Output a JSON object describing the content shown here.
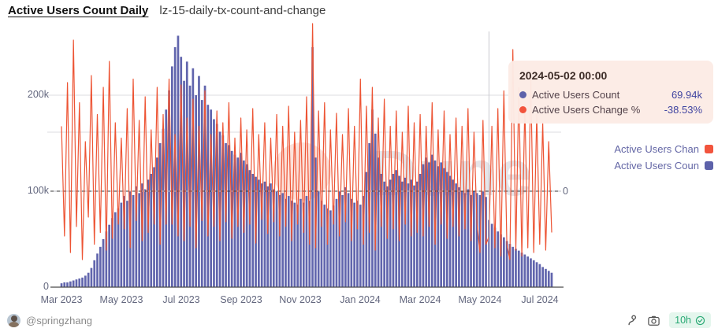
{
  "header": {
    "title": "Active Users Count Daily",
    "subtitle": "lz-15-daily-tx-count-and-change"
  },
  "tooltip": {
    "date": "2024-05-02 00:00",
    "rows": [
      {
        "label": "Active Users Count",
        "value": "69.94k",
        "color": "#5d62aa"
      },
      {
        "label": "Active Users Change %",
        "value": "-38.53%",
        "color": "#f2543d"
      }
    ]
  },
  "legend": [
    {
      "label": "Active Users Chan",
      "color": "#f2543d"
    },
    {
      "label": "Active Users Coun",
      "color": "#5d62aa"
    }
  ],
  "watermark": {
    "text": "Dune"
  },
  "footer": {
    "handle": "@springzhang",
    "refresh": "10h"
  },
  "colors": {
    "bar": "#6165ad",
    "line": "#ed5434",
    "grid": "#dcdce2",
    "zero_line": "#3a3a3a",
    "axis_text": "#63677e",
    "tooltip_bg": "#fcebe5",
    "badge_green": "#27a873"
  },
  "chart_data": {
    "type": "combo",
    "x_start": "2023-03-01",
    "x_step_days": 3,
    "x_ticks": [
      "Mar 2023",
      "May 2023",
      "Jul 2023",
      "Sep 2023",
      "Nov 2023",
      "Jan 2024",
      "Mar 2024",
      "May 2024",
      "Jul 2024"
    ],
    "left_axis": {
      "title": "Active Users Count",
      "tick_labels": [
        "0",
        "100k",
        "200k"
      ],
      "tick_values_k": [
        0,
        100,
        200
      ],
      "max_k": 270
    },
    "right_axis": {
      "title": "Active Users Change %",
      "tick_labels": [
        "0"
      ],
      "tick_values_pct": [
        0
      ]
    },
    "highlight": {
      "date": "2024-05-02 00:00",
      "count": "69.94k",
      "change_pct": -38.53
    },
    "series": [
      {
        "name": "Active Users Count",
        "type": "bar",
        "axis": "left",
        "unit": "k",
        "color": "#6165ad",
        "values": [
          4,
          5,
          5,
          6,
          7,
          8,
          9,
          10,
          12,
          15,
          20,
          28,
          35,
          42,
          50,
          58,
          65,
          72,
          78,
          82,
          88,
          95,
          90,
          100,
          96,
          105,
          98,
          108,
          102,
          112,
          118,
          125,
          135,
          150,
          165,
          185,
          205,
          230,
          250,
          262,
          240,
          215,
          235,
          210,
          228,
          200,
          220,
          195,
          210,
          190,
          185,
          175,
          170,
          162,
          158,
          150,
          148,
          142,
          138,
          135,
          140,
          132,
          128,
          122,
          118,
          115,
          112,
          108,
          110,
          105,
          108,
          102,
          100,
          96,
          98,
          92,
          95,
          90,
          88,
          86,
          92,
          88,
          95,
          90,
          250,
          135,
          100,
          90,
          86,
          82,
          80,
          85,
          92,
          100,
          96,
          104,
          98,
          92,
          88,
          90,
          86,
          95,
          120,
          150,
          185,
          160,
          135,
          118,
          110,
          105,
          112,
          118,
          122,
          116,
          110,
          114,
          108,
          112,
          106,
          110,
          118,
          128,
          135,
          130,
          138,
          132,
          126,
          130,
          124,
          120,
          116,
          112,
          108,
          104,
          100,
          98,
          102,
          96,
          100,
          98,
          96,
          100,
          94,
          70,
          66,
          62,
          58,
          55,
          52,
          48,
          45,
          42,
          40,
          38,
          36,
          34,
          32,
          30,
          28,
          26,
          24,
          21,
          19,
          17,
          15
        ]
      },
      {
        "name": "Active Users Change %",
        "type": "line",
        "axis": "right",
        "unit": "%",
        "color": "#ed5434",
        "values": [
          55,
          -38,
          92,
          -52,
          128,
          -30,
          75,
          -58,
          42,
          -22,
          98,
          -45,
          65,
          -35,
          88,
          -50,
          110,
          -40,
          58,
          -28,
          45,
          -32,
          70,
          -48,
          95,
          -25,
          60,
          -42,
          80,
          -35,
          52,
          -28,
          88,
          -45,
          65,
          -28,
          95,
          -28,
          48,
          -38,
          90,
          -42,
          62,
          -30,
          78,
          -48,
          55,
          -25,
          85,
          -38,
          48,
          -30,
          68,
          -42,
          58,
          -26,
          75,
          -40,
          45,
          -30,
          62,
          -35,
          52,
          -28,
          70,
          -44,
          48,
          -24,
          58,
          -36,
          45,
          -26,
          65,
          -38,
          55,
          -30,
          72,
          -42,
          50,
          -28,
          60,
          -35,
          80,
          -45,
          142,
          -48,
          68,
          -30,
          75,
          -45,
          52,
          -28,
          66,
          -38,
          48,
          -26,
          70,
          -42,
          55,
          -32,
          95,
          -45,
          72,
          -35,
          88,
          -50,
          62,
          -30,
          78,
          -40,
          55,
          -32,
          68,
          -42,
          50,
          -28,
          72,
          -38,
          58,
          -35,
          65,
          -38,
          55,
          -30,
          75,
          -45,
          52,
          -28,
          68,
          -40,
          48,
          -30,
          62,
          -38,
          55,
          -32,
          70,
          -42,
          50,
          -28,
          -52,
          60,
          -45,
          -38.53,
          55,
          -48,
          70,
          -55,
          85,
          -45,
          -58,
          120,
          -50,
          88,
          -55,
          72,
          -48,
          95,
          -52,
          65,
          -45,
          58,
          -50,
          42,
          -35
        ]
      }
    ]
  }
}
